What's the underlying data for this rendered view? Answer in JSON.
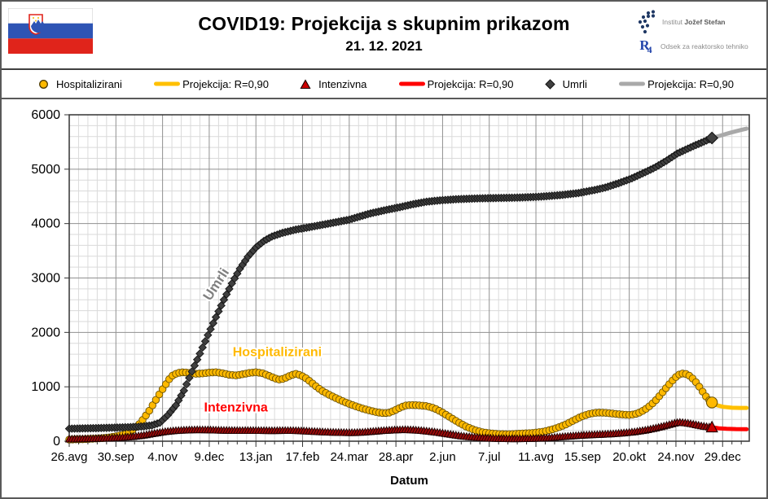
{
  "header": {
    "title": "COVID19: Projekcija s skupnim prikazom",
    "date": "21. 12. 2021",
    "org1_light": "Institut",
    "org1_bold": "Jožef Stefan",
    "org2_mark": "R",
    "org2_mark_sub": "4",
    "org2_text": "Odsek za reaktorsko tehniko"
  },
  "colors": {
    "hosp": "#FFB900",
    "hosp_stroke": "#6b5200",
    "hosp_proj": "#FFC000",
    "icu": "#9a0b0b",
    "icu_stroke": "#200000",
    "icu_bright": "#CC0000",
    "icu_proj": "#FF0000",
    "deaths": "#404040",
    "deaths_stroke": "#141414",
    "deaths_proj": "#A9A9A9",
    "grid_minor": "#DADADA",
    "grid_major": "#909090",
    "axis": "#333333",
    "label_umrli": "#808080",
    "label_hosp": "#FFB900",
    "label_icu": "#FF0000",
    "flag_blue": "#2E54B4",
    "flag_red": "#E0241B",
    "logo_blue": "#1F3864"
  },
  "legend": {
    "items": [
      {
        "marker": "circle",
        "label": "Hospitalizirani"
      },
      {
        "marker": "line",
        "label": "Projekcija: R=0,90"
      },
      {
        "marker": "triangle",
        "label": "Intenzivna"
      },
      {
        "marker": "line",
        "label": "Projekcija: R=0,90"
      },
      {
        "marker": "diamond",
        "label": "Umrli"
      },
      {
        "marker": "line",
        "label": "Projekcija: R=0,90"
      }
    ]
  },
  "chart_data": {
    "type": "line",
    "xlabel": "Datum",
    "x_tick_labels": [
      "26.avg",
      "30.sep",
      "4.nov",
      "9.dec",
      "13.jan",
      "17.feb",
      "24.mar",
      "28.apr",
      "2.jun",
      "7.jul",
      "11.avg",
      "15.sep",
      "20.okt",
      "24.nov",
      "29.dec"
    ],
    "x_major_step_days": 35,
    "x_minor_step_days": 7,
    "x_domain_days": [
      0,
      510
    ],
    "y_tick_labels": [
      "0",
      "1000",
      "2000",
      "3000",
      "4000",
      "5000",
      "6000"
    ],
    "ylim": [
      0,
      6000
    ],
    "y_minor_step": 200,
    "y_major_step": 1000,
    "grid": true,
    "series": [
      {
        "name": "Hospitalizirani",
        "marker": "circle",
        "color_key": "hosp",
        "stroke_key": "hosp_stroke",
        "marker_step_days": 2.5,
        "points": [
          [
            0,
            30
          ],
          [
            10,
            36
          ],
          [
            20,
            48
          ],
          [
            28,
            62
          ],
          [
            35,
            90
          ],
          [
            42,
            130
          ],
          [
            47,
            200
          ],
          [
            52,
            300
          ],
          [
            56,
            420
          ],
          [
            60,
            560
          ],
          [
            64,
            720
          ],
          [
            68,
            880
          ],
          [
            72,
            1030
          ],
          [
            75,
            1140
          ],
          [
            78,
            1220
          ],
          [
            82,
            1258
          ],
          [
            86,
            1268
          ],
          [
            90,
            1255
          ],
          [
            95,
            1240
          ],
          [
            100,
            1246
          ],
          [
            105,
            1260
          ],
          [
            110,
            1268
          ],
          [
            115,
            1250
          ],
          [
            120,
            1222
          ],
          [
            125,
            1210
          ],
          [
            130,
            1230
          ],
          [
            135,
            1255
          ],
          [
            140,
            1268
          ],
          [
            145,
            1250
          ],
          [
            150,
            1200
          ],
          [
            155,
            1150
          ],
          [
            158,
            1130
          ],
          [
            162,
            1160
          ],
          [
            166,
            1210
          ],
          [
            170,
            1238
          ],
          [
            174,
            1208
          ],
          [
            178,
            1150
          ],
          [
            182,
            1070
          ],
          [
            186,
            990
          ],
          [
            190,
            920
          ],
          [
            196,
            840
          ],
          [
            202,
            770
          ],
          [
            208,
            705
          ],
          [
            214,
            650
          ],
          [
            220,
            600
          ],
          [
            226,
            560
          ],
          [
            231,
            530
          ],
          [
            236,
            515
          ],
          [
            240,
            525
          ],
          [
            244,
            565
          ],
          [
            248,
            615
          ],
          [
            252,
            655
          ],
          [
            256,
            665
          ],
          [
            262,
            660
          ],
          [
            268,
            645
          ],
          [
            274,
            605
          ],
          [
            280,
            525
          ],
          [
            286,
            435
          ],
          [
            292,
            345
          ],
          [
            298,
            265
          ],
          [
            304,
            205
          ],
          [
            310,
            165
          ],
          [
            316,
            145
          ],
          [
            322,
            132
          ],
          [
            328,
            128
          ],
          [
            334,
            133
          ],
          [
            340,
            142
          ],
          [
            348,
            152
          ],
          [
            356,
            178
          ],
          [
            364,
            228
          ],
          [
            372,
            302
          ],
          [
            378,
            378
          ],
          [
            384,
            452
          ],
          [
            390,
            502
          ],
          [
            396,
            526
          ],
          [
            402,
            522
          ],
          [
            408,
            507
          ],
          [
            414,
            492
          ],
          [
            420,
            483
          ],
          [
            424,
            495
          ],
          [
            428,
            530
          ],
          [
            432,
            585
          ],
          [
            436,
            660
          ],
          [
            440,
            755
          ],
          [
            444,
            870
          ],
          [
            448,
            990
          ],
          [
            452,
            1105
          ],
          [
            455,
            1180
          ],
          [
            458,
            1235
          ],
          [
            461,
            1248
          ],
          [
            464,
            1225
          ],
          [
            467,
            1165
          ],
          [
            470,
            1085
          ],
          [
            473,
            985
          ],
          [
            476,
            875
          ],
          [
            478,
            805
          ],
          [
            480,
            752
          ],
          [
            482,
            712
          ]
        ]
      },
      {
        "name": "Umrli",
        "marker": "diamond",
        "color_key": "deaths",
        "stroke_key": "deaths_stroke",
        "marker_step_days": 2,
        "points": [
          [
            0,
            230
          ],
          [
            20,
            240
          ],
          [
            35,
            250
          ],
          [
            45,
            258
          ],
          [
            55,
            270
          ],
          [
            62,
            292
          ],
          [
            68,
            340
          ],
          [
            74,
            480
          ],
          [
            80,
            660
          ],
          [
            86,
            930
          ],
          [
            92,
            1280
          ],
          [
            98,
            1610
          ],
          [
            104,
            1950
          ],
          [
            110,
            2280
          ],
          [
            116,
            2600
          ],
          [
            122,
            2900
          ],
          [
            128,
            3170
          ],
          [
            134,
            3390
          ],
          [
            140,
            3560
          ],
          [
            146,
            3680
          ],
          [
            152,
            3762
          ],
          [
            160,
            3830
          ],
          [
            170,
            3890
          ],
          [
            182,
            3942
          ],
          [
            195,
            4002
          ],
          [
            210,
            4072
          ],
          [
            225,
            4182
          ],
          [
            236,
            4242
          ],
          [
            248,
            4302
          ],
          [
            258,
            4357
          ],
          [
            268,
            4402
          ],
          [
            278,
            4427
          ],
          [
            290,
            4447
          ],
          [
            305,
            4462
          ],
          [
            320,
            4470
          ],
          [
            335,
            4477
          ],
          [
            350,
            4490
          ],
          [
            360,
            4507
          ],
          [
            370,
            4527
          ],
          [
            382,
            4562
          ],
          [
            394,
            4617
          ],
          [
            402,
            4662
          ],
          [
            412,
            4742
          ],
          [
            421,
            4822
          ],
          [
            430,
            4922
          ],
          [
            439,
            5027
          ],
          [
            448,
            5157
          ],
          [
            456,
            5287
          ],
          [
            463,
            5367
          ],
          [
            469,
            5434
          ],
          [
            476,
            5507
          ],
          [
            482,
            5574
          ]
        ]
      },
      {
        "name": "Intenzivna",
        "marker": "triangle",
        "color_key": "icu",
        "stroke_key": "icu_stroke",
        "marker_step_days": 2,
        "points": [
          [
            0,
            40
          ],
          [
            14,
            46
          ],
          [
            28,
            55
          ],
          [
            38,
            65
          ],
          [
            48,
            85
          ],
          [
            56,
            110
          ],
          [
            64,
            145
          ],
          [
            72,
            175
          ],
          [
            80,
            195
          ],
          [
            88,
            205
          ],
          [
            96,
            210
          ],
          [
            104,
            208
          ],
          [
            112,
            202
          ],
          [
            120,
            198
          ],
          [
            128,
            196
          ],
          [
            136,
            197
          ],
          [
            144,
            196
          ],
          [
            152,
            193
          ],
          [
            160,
            196
          ],
          [
            168,
            196
          ],
          [
            176,
            188
          ],
          [
            184,
            178
          ],
          [
            192,
            168
          ],
          [
            200,
            162
          ],
          [
            208,
            158
          ],
          [
            214,
            158
          ],
          [
            220,
            164
          ],
          [
            228,
            180
          ],
          [
            236,
            196
          ],
          [
            244,
            206
          ],
          [
            252,
            212
          ],
          [
            258,
            206
          ],
          [
            264,
            196
          ],
          [
            270,
            181
          ],
          [
            278,
            156
          ],
          [
            286,
            126
          ],
          [
            294,
            96
          ],
          [
            302,
            76
          ],
          [
            310,
            61
          ],
          [
            320,
            50
          ],
          [
            330,
            45
          ],
          [
            340,
            46
          ],
          [
            350,
            52
          ],
          [
            360,
            62
          ],
          [
            370,
            82
          ],
          [
            380,
            102
          ],
          [
            390,
            116
          ],
          [
            400,
            126
          ],
          [
            408,
            136
          ],
          [
            416,
            152
          ],
          [
            424,
            172
          ],
          [
            432,
            202
          ],
          [
            440,
            242
          ],
          [
            446,
            278
          ],
          [
            452,
            318
          ],
          [
            455,
            338
          ],
          [
            458,
            346
          ],
          [
            461,
            340
          ],
          [
            465,
            326
          ],
          [
            470,
            302
          ],
          [
            475,
            277
          ],
          [
            480,
            260
          ],
          [
            482,
            256
          ]
        ]
      }
    ],
    "projections": [
      {
        "name": "Projekcija: R=0,90",
        "for": "Hospitalizirani",
        "color_key": "hosp_proj",
        "points": [
          [
            482,
            712
          ],
          [
            486,
            660
          ],
          [
            491,
            630
          ],
          [
            497,
            616
          ],
          [
            503,
            612
          ],
          [
            508,
            612
          ]
        ]
      },
      {
        "name": "Projekcija: R=0,90",
        "for": "Umrli",
        "color_key": "deaths_proj",
        "points": [
          [
            482,
            5574
          ],
          [
            488,
            5615
          ],
          [
            496,
            5672
          ],
          [
            504,
            5722
          ],
          [
            508,
            5745
          ]
        ]
      },
      {
        "name": "Projekcija: R=0,90",
        "for": "Intenzivna",
        "color_key": "icu_proj",
        "points": [
          [
            482,
            256
          ],
          [
            487,
            238
          ],
          [
            493,
            228
          ],
          [
            500,
            222
          ],
          [
            508,
            220
          ]
        ]
      }
    ],
    "annotations": [
      {
        "text": "Umrli",
        "day": 113,
        "value": 2840,
        "rotate": -57,
        "color_key": "label_umrli",
        "size": 17
      },
      {
        "text": "Hospitalizirani",
        "day": 156,
        "value": 1560,
        "rotate": 0,
        "color_key": "label_hosp",
        "size": 16
      },
      {
        "text": "Intenzivna",
        "day": 125,
        "value": 545,
        "rotate": 0,
        "color_key": "label_icu",
        "size": 16
      }
    ]
  }
}
